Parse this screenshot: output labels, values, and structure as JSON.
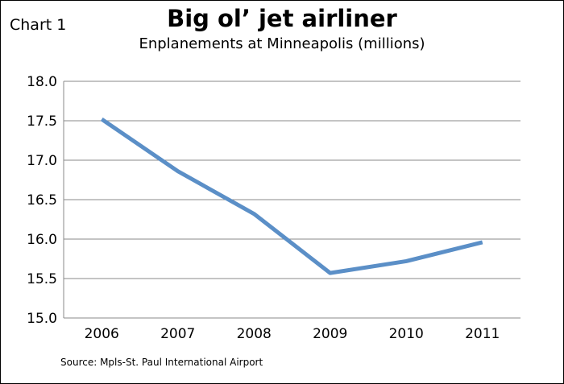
{
  "header": {
    "chart_label": "Chart 1",
    "title": "Big ol’ jet airliner",
    "subtitle": "Enplanements at Minneapolis (millions)"
  },
  "footer": {
    "source": "Source: Mpls-St. Paul International Airport"
  },
  "colors": {
    "line": "#5b8fc7",
    "grid": "#888888",
    "axis": "#888888"
  },
  "chart_data": {
    "type": "line",
    "title": "Big ol’ jet airliner",
    "subtitle": "Enplanements at Minneapolis (millions)",
    "xlabel": "",
    "ylabel": "",
    "categories": [
      "2006",
      "2007",
      "2008",
      "2009",
      "2010",
      "2011"
    ],
    "series": [
      {
        "values": [
          17.52,
          16.86,
          16.32,
          15.57,
          15.72,
          15.96
        ]
      }
    ],
    "ylim": [
      15.0,
      18.0
    ],
    "yticks": [
      "15.0",
      "15.5",
      "16.0",
      "16.5",
      "17.0",
      "17.5",
      "18.0"
    ],
    "grid": true,
    "legend": "none"
  }
}
